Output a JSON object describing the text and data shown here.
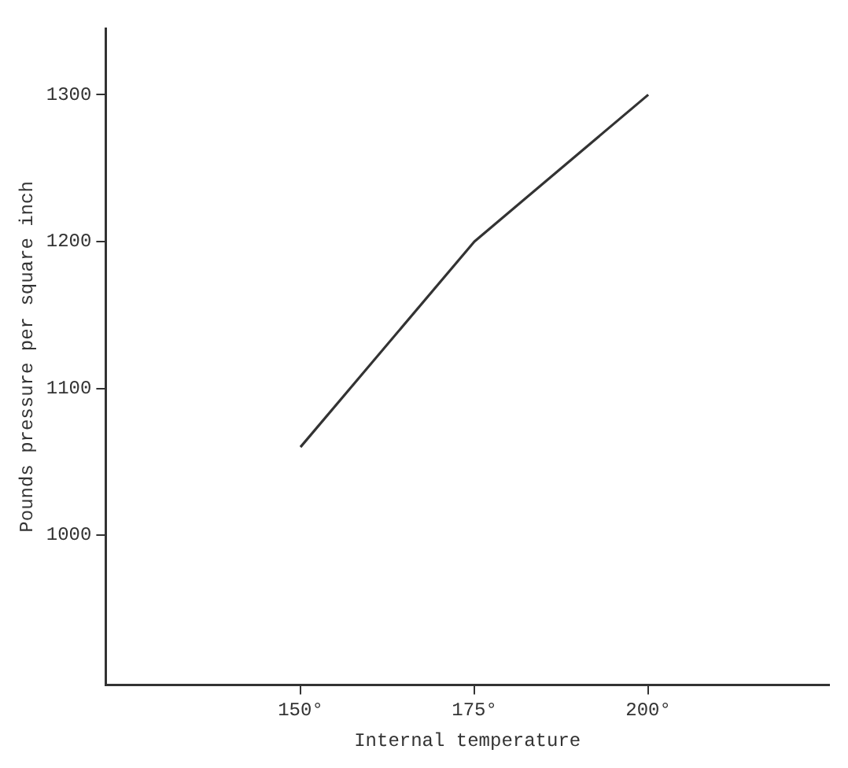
{
  "chart_data": {
    "type": "line",
    "xlabel": "Internal temperature",
    "ylabel": "Pounds pressure per square inch",
    "x": [
      150,
      175,
      200
    ],
    "series": [
      {
        "color": "#333333",
        "values": [
          1060,
          1200,
          1300
        ]
      }
    ],
    "xlim": [
      122,
      226
    ],
    "xticks": [
      {
        "value": 150,
        "label": "150°"
      },
      {
        "value": 175,
        "label": "175°"
      },
      {
        "value": 200,
        "label": "200°"
      }
    ],
    "ylim": [
      898,
      1345
    ],
    "yticks": [
      1000,
      1100,
      1200,
      1300
    ],
    "grid": false,
    "legend": false,
    "marker": "none",
    "line_style": "solid"
  }
}
